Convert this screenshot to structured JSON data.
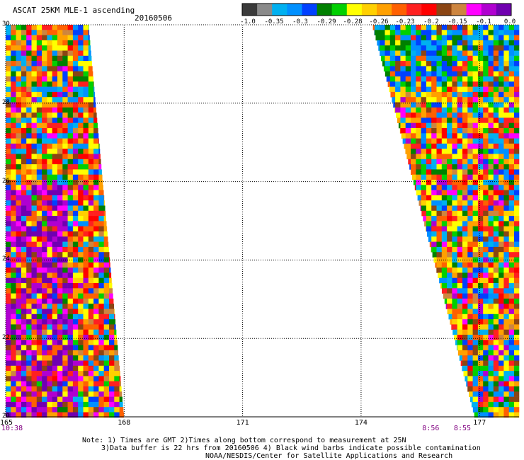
{
  "header": {
    "title": "ASCAT 25KM MLE-1 ascending",
    "date": "20160506"
  },
  "colorbar": {
    "colors": [
      "#3a3a3a",
      "#8a8a8a",
      "#00b0f0",
      "#0090ff",
      "#0040ff",
      "#008000",
      "#00d000",
      "#ffff00",
      "#ffd000",
      "#ffa000",
      "#ff6000",
      "#ff2020",
      "#ff0000",
      "#8b4513",
      "#cd853f",
      "#ff00ff",
      "#b000d0",
      "#7000b0"
    ],
    "labels": [
      "-1.0",
      "-0.35",
      "-0.3",
      "-0.29",
      "-0.28",
      "-0.26",
      "-0.23",
      "-0.2",
      "-0.15",
      "-0.1",
      "0.0"
    ]
  },
  "chart_data": {
    "type": "heatmap",
    "title": "ASCAT 25KM MLE-1 ascending",
    "date": "20160506",
    "xlim": [
      165,
      178
    ],
    "ylim": [
      20,
      30
    ],
    "x_ticks": [
      "165",
      "168",
      "171",
      "174",
      "177"
    ],
    "y_ticks": [
      "30",
      "28",
      "26",
      "24",
      "22",
      "20"
    ],
    "grid": true,
    "swaths": [
      {
        "name": "left",
        "edge_top_lon": 167.1,
        "edge_bottom_lon": 168.0,
        "dominant_values_south": "-0.1 to 0.0"
      },
      {
        "name": "right",
        "edge_top_lon": 174.3,
        "edge_bottom_lon": 176.9,
        "dominant_values_north": "-0.35 to -0.28"
      }
    ],
    "time_labels": [
      {
        "lon": 165,
        "time": "10:38"
      },
      {
        "lon": 175.8,
        "time": "8:56"
      },
      {
        "lon": 176.6,
        "time": "8:55"
      }
    ]
  },
  "footer": {
    "note1": "Note: 1) Times are GMT 2)Times along bottom correspond to measurement at 25N",
    "note2": "3)Data buffer is 22 hrs from 20160506 4) Black wind barbs indicate possible contamination",
    "note3": "NOAA/NESDIS/Center for Satellite Applications and Research"
  }
}
